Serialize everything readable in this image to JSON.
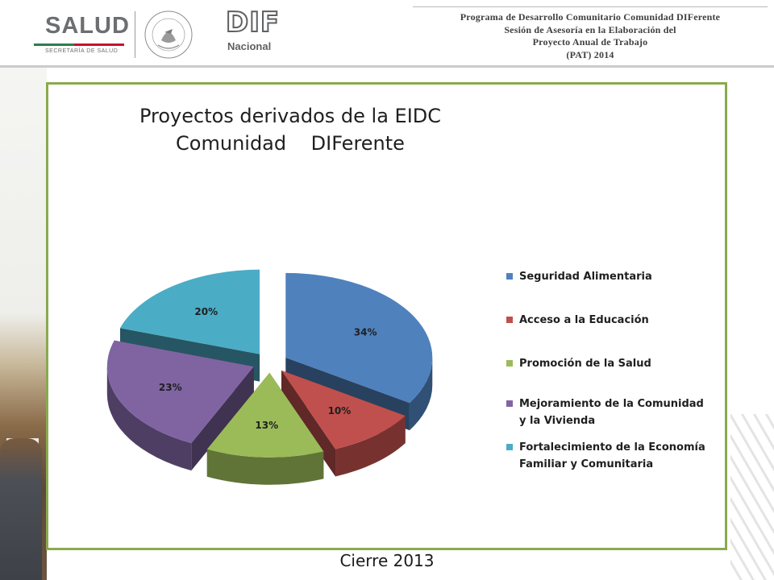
{
  "header": {
    "salud_logo": {
      "word": "SALUD",
      "subtitle": "SECRETARÍA DE SALUD"
    },
    "seal_text": "ESTADOS UNIDOS MEXICANOS",
    "dif_logo": {
      "word": "DIF",
      "subtitle": "Nacional"
    },
    "title_lines": [
      "Programa de Desarrollo Comunitario Comunidad DIFerente",
      "Sesión de Asesoría en la Elaboración del",
      "Proyecto Anual de Trabajo",
      "(PAT) 2014"
    ]
  },
  "chart_data": {
    "type": "pie",
    "style": "3d-exploded",
    "title_lines": [
      "Proyectos derivados de la EIDC",
      "Comunidad    DIFerente"
    ],
    "slices": [
      {
        "label": "Seguridad Alimentaria",
        "value": 34,
        "display": "34%",
        "color": "#4f81bd"
      },
      {
        "label": "Acceso a la Educación",
        "value": 10,
        "display": "10%",
        "color": "#c0504d"
      },
      {
        "label": "Promoción de la Salud",
        "value": 13,
        "display": "13%",
        "color": "#9bbb59"
      },
      {
        "label": "Mejoramiento de la Comunidad y la Vivienda",
        "value": 23,
        "display": "23%",
        "color": "#8064a2"
      },
      {
        "label": "Fortalecimiento de la Economía Familiar y Comunitaria",
        "value": 20,
        "display": "20%",
        "color": "#4bacc6"
      }
    ],
    "legend": {
      "placement": "right",
      "entries": [
        {
          "lines": [
            "Seguridad Alimentaria"
          ],
          "color": "#4f81bd"
        },
        {
          "lines": [
            "Acceso a la Educación"
          ],
          "color": "#c0504d"
        },
        {
          "lines": [
            "Promoción de la Salud"
          ],
          "color": "#9bbb59"
        },
        {
          "lines": [
            "Mejoramiento de la Comunidad",
            "y la Vivienda"
          ],
          "color": "#8064a2"
        },
        {
          "lines": [
            "Fortalecimiento de la Economía",
            "Familiar y Comunitaria"
          ],
          "color": "#4bacc6"
        }
      ]
    }
  },
  "footer": {
    "label": "Cierre 2013"
  },
  "colors": {
    "panel_border": "#8aaa4e",
    "header_rule": "#c9ccc9"
  }
}
